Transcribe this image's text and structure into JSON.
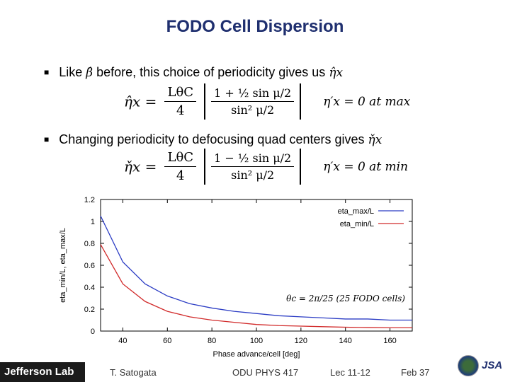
{
  "slide": {
    "title": "FODO Cell Dispersion",
    "bullet1_prefix": "Like",
    "bullet1_symbol": "β̂",
    "bullet1_suffix": "before, this choice of periodicity gives us",
    "bullet1_target": "η̂x",
    "bullet2_text": "Changing periodicity to defocusing quad centers gives",
    "bullet2_target": "η̌x",
    "eq1_lhs": "η̂x =",
    "eq1_num": "LθC",
    "eq1_den": "4",
    "eq1_bracket_num": "1 + ½ sin μ/2",
    "eq1_bracket_den": "sin² μ/2",
    "eq1_side": "η′x = 0 at max",
    "eq2_lhs": "η̌x =",
    "eq2_num": "LθC",
    "eq2_den": "4",
    "eq2_bracket_num": "1 − ½ sin μ/2",
    "eq2_bracket_den": "sin² μ/2",
    "eq2_side": "η′x = 0 at min"
  },
  "footer": {
    "logo": "Jefferson Lab",
    "author": "T. Satogata",
    "course": "ODU PHYS 417",
    "lecture": "Lec 11-12",
    "date_page": "Feb 37",
    "logo_right": "JSA"
  },
  "chart_data": {
    "type": "line",
    "xlabel": "Phase advance/cell [deg]",
    "ylabel": "eta_min/L, eta_max/L",
    "xlim": [
      30,
      170
    ],
    "ylim": [
      0,
      1.2
    ],
    "xticks": [
      40,
      60,
      80,
      100,
      120,
      140,
      160
    ],
    "yticks": [
      0,
      0.2,
      0.4,
      0.6,
      0.8,
      1,
      1.2
    ],
    "annotation": "θc = 2π/25 (25 FODO cells)",
    "legend_position": "top-right",
    "grid": false,
    "x": [
      30,
      40,
      50,
      60,
      70,
      80,
      90,
      100,
      110,
      120,
      130,
      140,
      150,
      160,
      170
    ],
    "series": [
      {
        "name": "eta_max/L",
        "color": "#2b3cc4",
        "values": [
          1.05,
          0.63,
          0.43,
          0.32,
          0.25,
          0.21,
          0.18,
          0.16,
          0.14,
          0.13,
          0.12,
          0.11,
          0.11,
          0.1,
          0.1
        ]
      },
      {
        "name": "eta_min/L",
        "color": "#d12a2a",
        "values": [
          0.79,
          0.43,
          0.27,
          0.18,
          0.13,
          0.1,
          0.08,
          0.06,
          0.05,
          0.045,
          0.04,
          0.035,
          0.032,
          0.03,
          0.03
        ]
      }
    ]
  }
}
